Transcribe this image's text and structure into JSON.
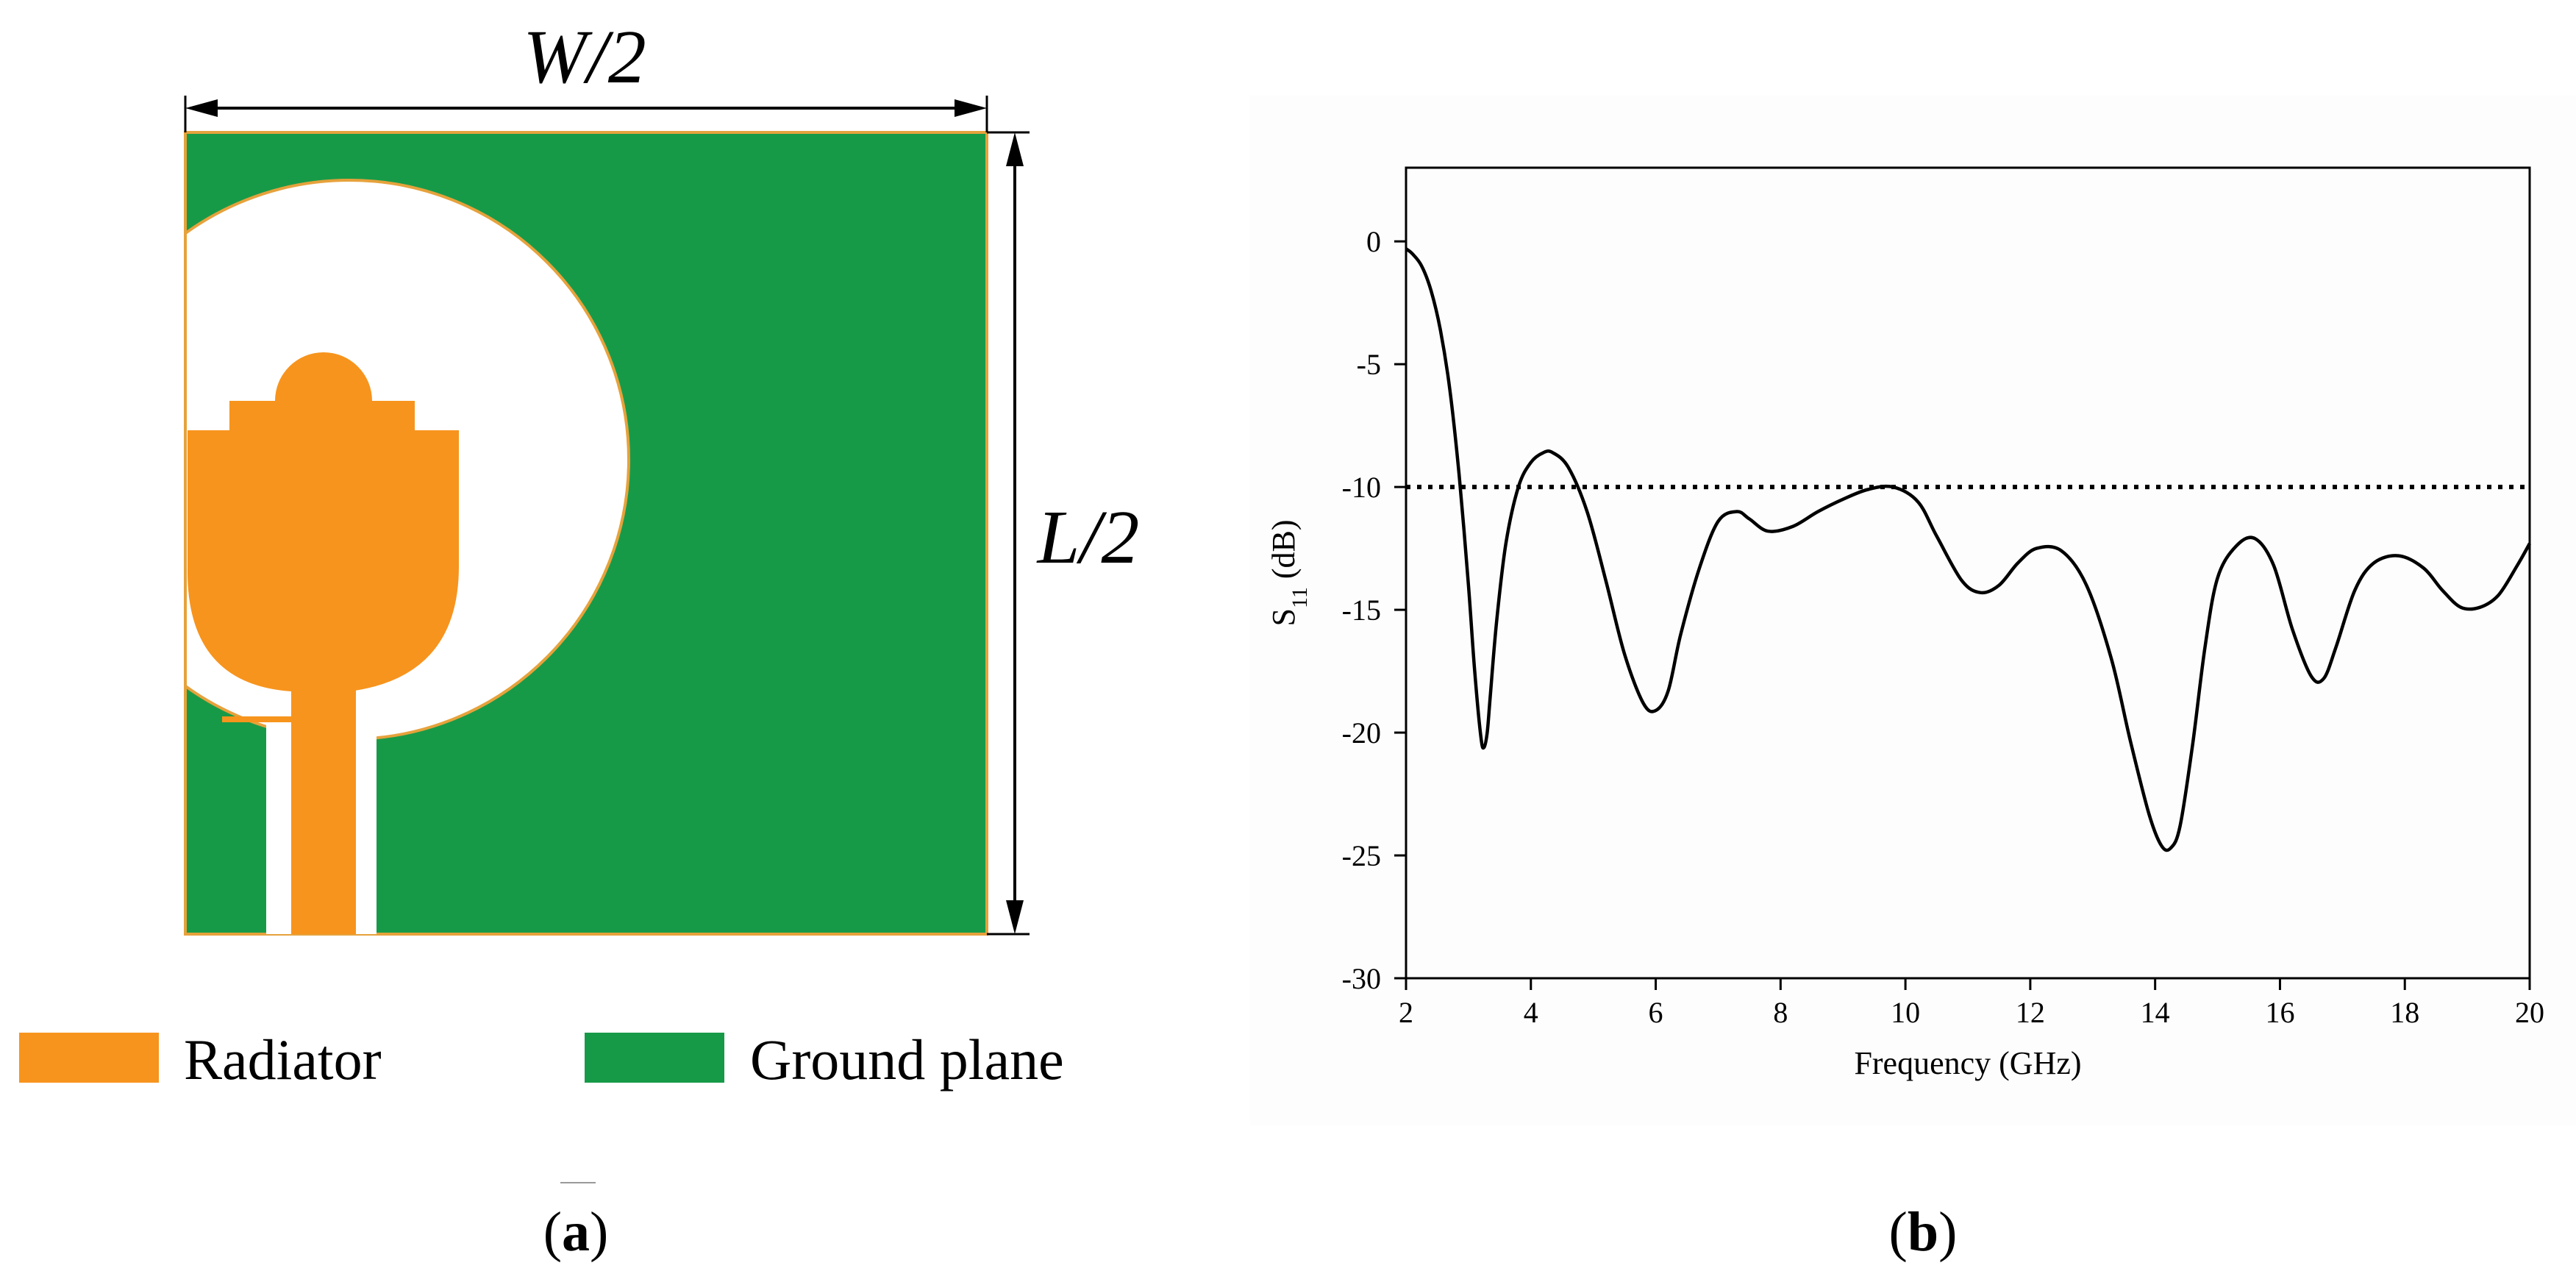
{
  "panel_a": {
    "dim_width_label": "W/2",
    "dim_length_label": "L/2",
    "legend": [
      {
        "label": "Radiator",
        "color": "#F7941D"
      },
      {
        "label": "Ground plane",
        "color": "#179A48"
      }
    ],
    "colors": {
      "radiator": "#F7941D",
      "ground": "#179A48"
    },
    "caption_open": "(",
    "caption_letter": "a",
    "caption_close": ")"
  },
  "panel_b": {
    "caption_open": "(",
    "caption_letter": "b",
    "caption_close": ")"
  },
  "chart_data": {
    "type": "line",
    "title": "",
    "xlabel": "Frequency (GHz)",
    "ylabel_main": "S",
    "ylabel_sub": "11",
    "ylabel_unit": " (dB)",
    "xlim": [
      2,
      20
    ],
    "ylim": [
      -30,
      3
    ],
    "x_ticks": [
      2,
      4,
      6,
      8,
      10,
      12,
      14,
      16,
      18,
      20
    ],
    "y_ticks": [
      0,
      -5,
      -10,
      -15,
      -20,
      -25,
      -30
    ],
    "grid": false,
    "reference_line": {
      "y": -10,
      "style": "dotted"
    },
    "series": [
      {
        "x": [
          2.0,
          2.1,
          2.25,
          2.4,
          2.55,
          2.7,
          2.85,
          3.0,
          3.1,
          3.2,
          3.25,
          3.3,
          3.35,
          3.45,
          3.6,
          3.8,
          4.0,
          4.2,
          4.35,
          4.6,
          4.9,
          5.2,
          5.5,
          5.8,
          6.0,
          6.2,
          6.4,
          6.7,
          7.0,
          7.3,
          7.5,
          7.8,
          8.2,
          8.6,
          9.0,
          9.4,
          9.8,
          10.2,
          10.5,
          10.9,
          11.2,
          11.5,
          11.8,
          12.1,
          12.5,
          12.9,
          13.3,
          13.6,
          13.9,
          14.1,
          14.25,
          14.4,
          14.6,
          14.8,
          15.0,
          15.3,
          15.6,
          15.9,
          16.2,
          16.5,
          16.7,
          16.9,
          17.2,
          17.5,
          17.9,
          18.3,
          18.6,
          18.9,
          19.2,
          19.5,
          19.8,
          20.0
        ],
        "y": [
          -0.3,
          -0.5,
          -1.0,
          -2.0,
          -3.6,
          -6.0,
          -9.5,
          -14.0,
          -17.5,
          -20.2,
          -20.6,
          -20.0,
          -18.5,
          -15.5,
          -12.3,
          -10.0,
          -9.0,
          -8.6,
          -8.6,
          -9.2,
          -11.0,
          -13.8,
          -16.8,
          -18.8,
          -19.1,
          -18.3,
          -16.0,
          -13.3,
          -11.4,
          -11.0,
          -11.3,
          -11.8,
          -11.6,
          -11.0,
          -10.5,
          -10.1,
          -10.0,
          -10.6,
          -12.0,
          -13.8,
          -14.3,
          -14.0,
          -13.1,
          -12.5,
          -12.6,
          -14.0,
          -17.0,
          -20.3,
          -23.3,
          -24.6,
          -24.7,
          -23.8,
          -20.5,
          -16.5,
          -13.7,
          -12.4,
          -12.1,
          -13.2,
          -15.8,
          -17.7,
          -17.8,
          -16.5,
          -14.2,
          -13.1,
          -12.8,
          -13.3,
          -14.2,
          -14.9,
          -14.9,
          -14.4,
          -13.2,
          -12.3
        ]
      }
    ]
  }
}
